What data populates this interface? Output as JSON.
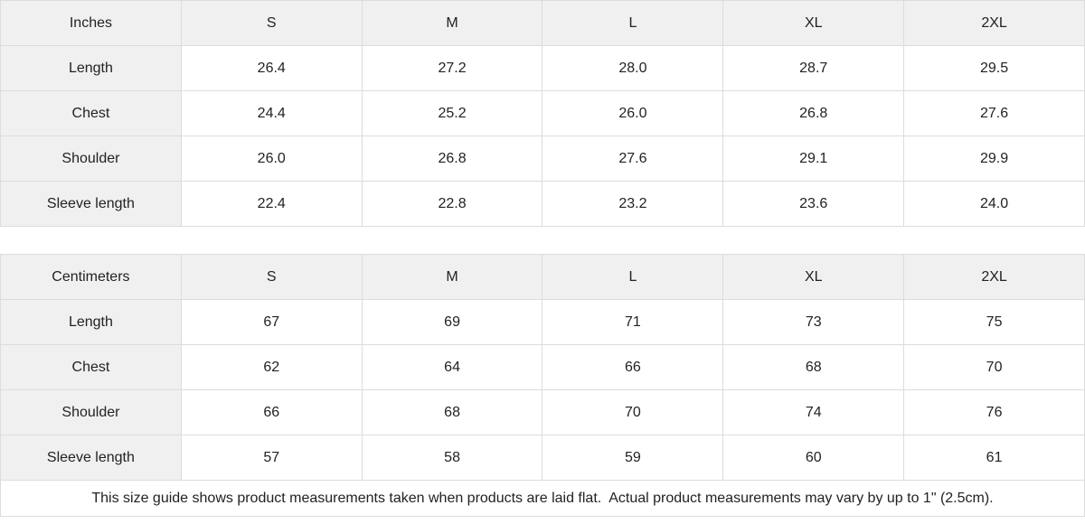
{
  "colors": {
    "header_bg": "#f0f0f0",
    "border": "#dcdcdc",
    "text": "#222222",
    "cell_bg": "#ffffff"
  },
  "tables": [
    {
      "unit_label": "Inches",
      "size_headers": [
        "S",
        "M",
        "L",
        "XL",
        "2XL"
      ],
      "rows": [
        {
          "label": "Length",
          "values": [
            "26.4",
            "27.2",
            "28.0",
            "28.7",
            "29.5"
          ]
        },
        {
          "label": "Chest",
          "values": [
            "24.4",
            "25.2",
            "26.0",
            "26.8",
            "27.6"
          ]
        },
        {
          "label": "Shoulder",
          "values": [
            "26.0",
            "26.8",
            "27.6",
            "29.1",
            "29.9"
          ]
        },
        {
          "label": "Sleeve length",
          "values": [
            "22.4",
            "22.8",
            "23.2",
            "23.6",
            "24.0"
          ]
        }
      ]
    },
    {
      "unit_label": "Centimeters",
      "size_headers": [
        "S",
        "M",
        "L",
        "XL",
        "2XL"
      ],
      "rows": [
        {
          "label": "Length",
          "values": [
            "67",
            "69",
            "71",
            "73",
            "75"
          ]
        },
        {
          "label": "Chest",
          "values": [
            "62",
            "64",
            "66",
            "68",
            "70"
          ]
        },
        {
          "label": "Shoulder",
          "values": [
            "66",
            "68",
            "70",
            "74",
            "76"
          ]
        },
        {
          "label": "Sleeve length",
          "values": [
            "57",
            "58",
            "59",
            "60",
            "61"
          ]
        }
      ]
    }
  ],
  "footer": {
    "note": "This size guide shows product measurements taken when products are laid flat.  Actual product measurements may vary by up to 1\" (2.5cm)."
  }
}
